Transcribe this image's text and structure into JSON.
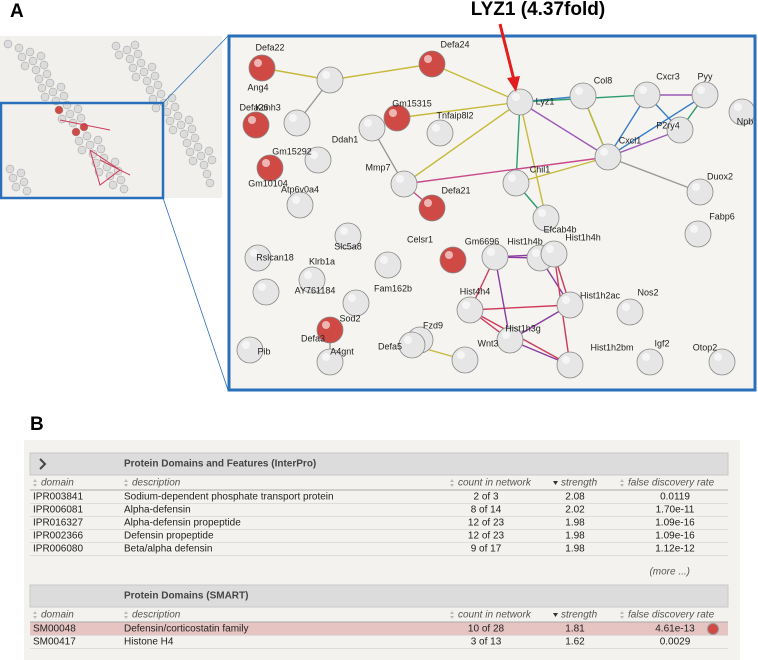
{
  "panel_a": {
    "label": "A",
    "annotation": "LYZ1 (4.37fold)",
    "nodes": [
      {
        "label": "Defa22",
        "color": "#d04a45"
      },
      {
        "label": "Ang4",
        "color": "#e6e6e6"
      },
      {
        "label": "Defa24",
        "color": "#d04a45"
      },
      {
        "label": "Defa26",
        "color": "#d04a45"
      },
      {
        "label": "Kcnh3",
        "color": "#e6e6e6"
      },
      {
        "label": "Gm15315",
        "color": "#d04a45"
      },
      {
        "label": "Tnfaip8l2",
        "color": "#e6e6e6"
      },
      {
        "label": "Ddah1",
        "color": "#e6e6e6"
      },
      {
        "label": "Lyz1",
        "color": "#e6e6e6"
      },
      {
        "label": "Col8",
        "color": "#e6e6e6"
      },
      {
        "label": "Cxcr3",
        "color": "#e6e6e6"
      },
      {
        "label": "Pyy",
        "color": "#e6e6e6"
      },
      {
        "label": "P2ry4",
        "color": "#e6e6e6"
      },
      {
        "label": "Npb",
        "color": "#e6e6e6"
      },
      {
        "label": "Cxcl1",
        "color": "#e6e6e6"
      },
      {
        "label": "Gm15292",
        "color": "#e6e6e6"
      },
      {
        "label": "Mmp7",
        "color": "#e6e6e6"
      },
      {
        "label": "Defa21",
        "color": "#d04a45"
      },
      {
        "label": "Chil1",
        "color": "#e6e6e6"
      },
      {
        "label": "Efcab4b",
        "color": "#e6e6e6"
      },
      {
        "label": "Gm10104",
        "color": "#d04a45"
      },
      {
        "label": "Atp6v0a4",
        "color": "#e6e6e6"
      },
      {
        "label": "Duox2",
        "color": "#e6e6e6"
      },
      {
        "label": "Fabp6",
        "color": "#e6e6e6"
      },
      {
        "label": "Slc5a8",
        "color": "#e6e6e6"
      },
      {
        "label": "Rslcan18",
        "color": "#e6e6e6"
      },
      {
        "label": "Celsr1",
        "color": "#d04a45"
      },
      {
        "label": "Gm6696",
        "color": "#e6e6e6"
      },
      {
        "label": "Hist1h4b",
        "color": "#e6e6e6"
      },
      {
        "label": "Hist1h4h",
        "color": "#e6e6e6"
      },
      {
        "label": "Klrb1a",
        "color": "#e6e6e6"
      },
      {
        "label": "AY761184",
        "color": "#e6e6e6"
      },
      {
        "label": "Fam162b",
        "color": "#e6e6e6"
      },
      {
        "label": "Hist4h4",
        "color": "#e6e6e6"
      },
      {
        "label": "Hist1h2ac",
        "color": "#e6e6e6"
      },
      {
        "label": "Nos2",
        "color": "#e6e6e6"
      },
      {
        "label": "Sod2",
        "color": "#e6e6e6"
      },
      {
        "label": "Fzd9",
        "color": "#e6e6e6"
      },
      {
        "label": "Hist1h3g",
        "color": "#e6e6e6"
      },
      {
        "label": "Defa3",
        "color": "#d04a45"
      },
      {
        "label": "Wnt3",
        "color": "#e6e6e6"
      },
      {
        "label": "A4gnt",
        "color": "#e6e6e6"
      },
      {
        "label": "Defa5",
        "color": "#e6e6e6"
      },
      {
        "label": "Pib",
        "color": "#e6e6e6"
      },
      {
        "label": "Hist1h2bm",
        "color": "#e6e6e6"
      },
      {
        "label": "Igf2",
        "color": "#e6e6e6"
      },
      {
        "label": "Otop2",
        "color": "#e6e6e6"
      }
    ]
  },
  "panel_b": {
    "label": "B",
    "tables": [
      {
        "title": "Protein Domains and Features (InterPro)",
        "columns": [
          "domain",
          "description",
          "count in network",
          "strength",
          "false discovery rate"
        ],
        "rows": [
          [
            "IPR003841",
            "Sodium-dependent phosphate transport protein",
            "2 of 3",
            "2.08",
            "0.0119"
          ],
          [
            "IPR006081",
            "Alpha-defensin",
            "8 of 14",
            "2.02",
            "1.70e-11"
          ],
          [
            "IPR016327",
            "Alpha-defensin propeptide",
            "12 of 23",
            "1.98",
            "1.09e-16"
          ],
          [
            "IPR002366",
            "Defensin propeptide",
            "12 of 23",
            "1.98",
            "1.09e-16"
          ],
          [
            "IPR006080",
            "Beta/alpha defensin",
            "9 of 17",
            "1.98",
            "1.12e-12"
          ]
        ],
        "more": "(more ...)"
      },
      {
        "title": "Protein Domains (SMART)",
        "columns": [
          "domain",
          "description",
          "count in network",
          "strength",
          "false discovery rate"
        ],
        "rows": [
          [
            "SM00048",
            "Defensin/corticostatin family",
            "10 of 28",
            "1.81",
            "4.61e-13"
          ],
          [
            "SM00417",
            "Histone H4",
            "3 of 13",
            "1.62",
            "0.0029"
          ]
        ]
      }
    ]
  }
}
